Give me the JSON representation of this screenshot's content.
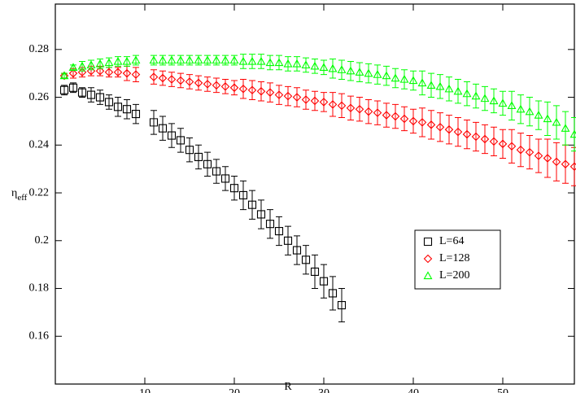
{
  "chart_data": {
    "type": "scatter",
    "xlabel": "R",
    "ylabel": {
      "text": "η",
      "subscript": "eff"
    },
    "xlim": [
      0,
      58
    ],
    "ylim": [
      0.14,
      0.299
    ],
    "xticks": [
      10,
      20,
      30,
      40,
      50
    ],
    "yticks": [
      0.16,
      0.18,
      0.2,
      0.22,
      0.24,
      0.26,
      0.28
    ],
    "legend": "right",
    "series": [
      {
        "name": "L=64",
        "color": "#000000",
        "marker": "square",
        "x": [
          1,
          2,
          3,
          4,
          5,
          6,
          7,
          8,
          9,
          11,
          12,
          13,
          14,
          15,
          16,
          17,
          18,
          19,
          20,
          21,
          22,
          23,
          24,
          25,
          26,
          27,
          28,
          29,
          30,
          31,
          32
        ],
        "values": [
          0.263,
          0.264,
          0.262,
          0.261,
          0.26,
          0.258,
          0.256,
          0.255,
          0.253,
          0.2495,
          0.247,
          0.244,
          0.242,
          0.238,
          0.235,
          0.232,
          0.229,
          0.226,
          0.222,
          0.219,
          0.215,
          0.211,
          0.207,
          0.204,
          0.2,
          0.196,
          0.192,
          0.187,
          0.183,
          0.178,
          0.173
        ],
        "errors": [
          0.002,
          0.002,
          0.002,
          0.003,
          0.003,
          0.003,
          0.004,
          0.004,
          0.004,
          0.005,
          0.005,
          0.005,
          0.005,
          0.005,
          0.005,
          0.005,
          0.005,
          0.005,
          0.005,
          0.006,
          0.006,
          0.006,
          0.006,
          0.006,
          0.006,
          0.006,
          0.006,
          0.007,
          0.007,
          0.007,
          0.007
        ]
      },
      {
        "name": "L=128",
        "color": "#ff0000",
        "marker": "diamond",
        "x": [
          1,
          2,
          3,
          4,
          5,
          6,
          7,
          8,
          9,
          11,
          12,
          13,
          14,
          15,
          16,
          17,
          18,
          19,
          20,
          21,
          22,
          23,
          24,
          25,
          26,
          27,
          28,
          29,
          30,
          31,
          32,
          33,
          34,
          35,
          36,
          37,
          38,
          39,
          40,
          41,
          42,
          43,
          44,
          45,
          46,
          47,
          48,
          49,
          50,
          51,
          52,
          53,
          54,
          55,
          56,
          57,
          58
        ],
        "values": [
          0.269,
          0.27,
          0.2705,
          0.271,
          0.271,
          0.2705,
          0.2705,
          0.27,
          0.2695,
          0.2685,
          0.268,
          0.2675,
          0.267,
          0.2665,
          0.266,
          0.2655,
          0.265,
          0.2645,
          0.264,
          0.2635,
          0.263,
          0.2625,
          0.262,
          0.261,
          0.2605,
          0.26,
          0.259,
          0.2585,
          0.258,
          0.257,
          0.2565,
          0.2555,
          0.255,
          0.254,
          0.2535,
          0.2525,
          0.252,
          0.251,
          0.25,
          0.2495,
          0.2485,
          0.2475,
          0.2465,
          0.2455,
          0.2445,
          0.2435,
          0.2425,
          0.2415,
          0.2405,
          0.2395,
          0.238,
          0.237,
          0.2355,
          0.2345,
          0.233,
          0.232,
          0.231
        ],
        "errors": [
          0.001,
          0.002,
          0.002,
          0.002,
          0.002,
          0.002,
          0.002,
          0.003,
          0.003,
          0.003,
          0.003,
          0.003,
          0.003,
          0.003,
          0.003,
          0.003,
          0.003,
          0.003,
          0.003,
          0.004,
          0.004,
          0.004,
          0.004,
          0.004,
          0.004,
          0.004,
          0.004,
          0.004,
          0.004,
          0.005,
          0.005,
          0.005,
          0.005,
          0.005,
          0.005,
          0.005,
          0.005,
          0.005,
          0.005,
          0.006,
          0.006,
          0.006,
          0.006,
          0.006,
          0.006,
          0.006,
          0.006,
          0.006,
          0.006,
          0.007,
          0.007,
          0.007,
          0.007,
          0.008,
          0.008,
          0.008,
          0.008
        ]
      },
      {
        "name": "L=200",
        "color": "#00ff00",
        "marker": "triangle",
        "x": [
          1,
          2,
          3,
          4,
          5,
          6,
          7,
          8,
          9,
          11,
          12,
          13,
          14,
          15,
          16,
          17,
          18,
          19,
          20,
          21,
          22,
          23,
          24,
          25,
          26,
          27,
          28,
          29,
          30,
          31,
          32,
          33,
          34,
          35,
          36,
          37,
          38,
          39,
          40,
          41,
          42,
          43,
          44,
          45,
          46,
          47,
          48,
          49,
          50,
          51,
          52,
          53,
          54,
          55,
          56,
          57,
          58
        ],
        "values": [
          0.269,
          0.2725,
          0.273,
          0.2735,
          0.274,
          0.2745,
          0.275,
          0.275,
          0.2755,
          0.2755,
          0.2755,
          0.2755,
          0.2755,
          0.2755,
          0.2755,
          0.2755,
          0.2755,
          0.2755,
          0.2755,
          0.275,
          0.275,
          0.275,
          0.2745,
          0.2745,
          0.274,
          0.274,
          0.2735,
          0.273,
          0.2725,
          0.272,
          0.2715,
          0.271,
          0.2705,
          0.27,
          0.2695,
          0.269,
          0.268,
          0.2675,
          0.267,
          0.266,
          0.265,
          0.2645,
          0.2635,
          0.2625,
          0.2615,
          0.2605,
          0.2595,
          0.2585,
          0.2575,
          0.2565,
          0.255,
          0.254,
          0.2525,
          0.251,
          0.2495,
          0.247,
          0.2445
        ],
        "errors": [
          0.001,
          0.001,
          0.002,
          0.002,
          0.002,
          0.002,
          0.002,
          0.002,
          0.002,
          0.002,
          0.002,
          0.002,
          0.002,
          0.002,
          0.002,
          0.002,
          0.002,
          0.002,
          0.002,
          0.003,
          0.003,
          0.003,
          0.003,
          0.003,
          0.003,
          0.003,
          0.003,
          0.003,
          0.003,
          0.004,
          0.004,
          0.004,
          0.004,
          0.004,
          0.004,
          0.004,
          0.004,
          0.004,
          0.004,
          0.005,
          0.005,
          0.005,
          0.005,
          0.005,
          0.005,
          0.005,
          0.005,
          0.005,
          0.005,
          0.006,
          0.006,
          0.006,
          0.006,
          0.007,
          0.007,
          0.007,
          0.007
        ]
      }
    ]
  }
}
